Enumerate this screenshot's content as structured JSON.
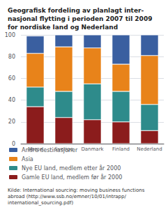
{
  "chart_data": {
    "type": "bar",
    "stacked": true,
    "title": "Geografisk fordeling av planlagt inter-\nnasjonal flytting i perioden 2007 til 2009\nfor nordiske land og Nederland",
    "annotations": [
      "Kilde: International sourcing: moving business functions\nabroad (http://www.ssb.no/emner/10/01/intrapp/\ninternational_sourcing.pdf)"
    ],
    "categories": [
      "Norge",
      "Sverige",
      "Danmark",
      "Finland",
      "Nederland"
    ],
    "series": [
      {
        "name": "Gamle EU land, medlem før år 2000",
        "color": "#8B1C1C",
        "values": [
          34,
          24,
          22,
          20,
          12
        ]
      },
      {
        "name": "Nye EU land, medlem etter år 2000",
        "color": "#2E8B8B",
        "values": [
          18,
          24,
          33,
          28,
          24
        ]
      },
      {
        "name": "Asia",
        "color": "#E8831A",
        "values": [
          31,
          41,
          33,
          25,
          45
        ]
      },
      {
        "name": "Andre destinasjoner",
        "color": "#3A5FA0",
        "values": [
          16,
          11,
          12,
          27,
          19
        ]
      }
    ],
    "ylim": [
      0,
      100
    ],
    "yticks": [
      0,
      20,
      40,
      60,
      80,
      100
    ],
    "grid": true,
    "legend": "bottom"
  }
}
